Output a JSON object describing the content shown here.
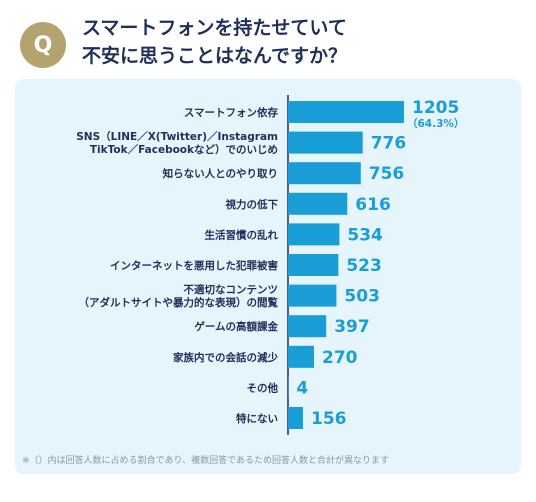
{
  "header": {
    "badge": "Q",
    "title_line1": "スマートフォンを持たせていて",
    "title_line2": "不安に思うことはなんですか？"
  },
  "colors": {
    "bar": "#1a9ed8",
    "axis": "#1f2f5a",
    "panel": "#e6f4fb",
    "badge": "#b3a46f",
    "title": "#1f2f5a"
  },
  "chart_data": {
    "type": "bar",
    "orientation": "horizontal",
    "xlim": [
      0,
      1205
    ],
    "categories": [
      [
        "スマートフォン依存"
      ],
      [
        "SNS（LINE／X(Twitter)／Instagram",
        "TikTok／Facebookなど）でのいじめ"
      ],
      [
        "知らない人とのやり取り"
      ],
      [
        "視力の低下"
      ],
      [
        "生活習慣の乱れ"
      ],
      [
        "インターネットを悪用した犯罪被害"
      ],
      [
        "不適切なコンテンツ",
        "（アダルトサイトや暴力的な表現）の閲覧"
      ],
      [
        "ゲームの高額課金"
      ],
      [
        "家族内での会話の減少"
      ],
      [
        "その他"
      ],
      [
        "特にない"
      ]
    ],
    "values": [
      1205,
      776,
      756,
      616,
      534,
      523,
      503,
      397,
      270,
      4,
      156
    ],
    "value_labels": [
      "1205",
      "776",
      "756",
      "616",
      "534",
      "523",
      "503",
      "397",
      "270",
      "4",
      "156"
    ],
    "annotations": [
      {
        "index": 0,
        "text": "（64.3%）"
      }
    ]
  },
  "footnote": "※（）内は回答人数に占める割合であり、複数回答であるため回答人数と合計が異なります"
}
